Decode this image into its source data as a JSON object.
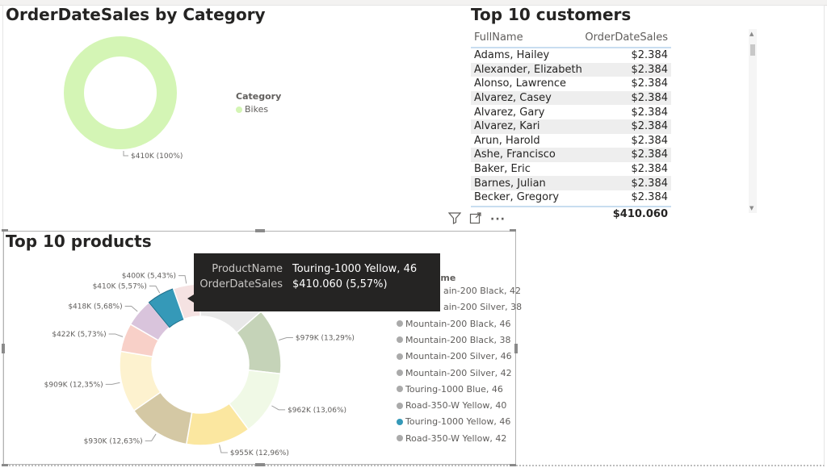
{
  "category_visual": {
    "title": "OrderDateSales by Category",
    "legend_title": "Category",
    "legend_items": [
      {
        "label": "Bikes",
        "color": "#d4f5b5"
      }
    ],
    "chart_data": {
      "type": "pie",
      "categories": [
        "Bikes"
      ],
      "values": [
        410
      ],
      "data_labels": [
        "$410K (100%)"
      ],
      "legend_placement": "right"
    }
  },
  "customers_visual": {
    "title": "Top 10 customers",
    "columns": [
      "FullName",
      "OrderDateSales"
    ],
    "rows": [
      {
        "name": "Adams, Hailey",
        "sales": "$2.384"
      },
      {
        "name": "Alexander, Elizabeth",
        "sales": "$2.384"
      },
      {
        "name": "Alonso, Lawrence",
        "sales": "$2.384"
      },
      {
        "name": "Alvarez, Casey",
        "sales": "$2.384"
      },
      {
        "name": "Alvarez, Gary",
        "sales": "$2.384"
      },
      {
        "name": "Alvarez, Kari",
        "sales": "$2.384"
      },
      {
        "name": "Arun, Harold",
        "sales": "$2.384"
      },
      {
        "name": "Ashe, Francisco",
        "sales": "$2.384"
      },
      {
        "name": "Baker, Eric",
        "sales": "$2.384"
      },
      {
        "name": "Barnes, Julian",
        "sales": "$2.384"
      },
      {
        "name": "Becker, Gregory",
        "sales": "$2.384"
      }
    ],
    "total": "$410.060"
  },
  "toolbar": {
    "icons": [
      "filter-icon",
      "focus-mode-icon",
      "more-options-icon"
    ]
  },
  "products_visual": {
    "title": "Top 10 products",
    "legend_title": "ame",
    "legend_items": [
      {
        "label": "ain-200 Black, 42",
        "color": "#aaaaaa"
      },
      {
        "label": "ain-200 Silver, 38",
        "color": "#aaaaaa"
      },
      {
        "label": "Mountain-200 Black, 46",
        "color": "#aaaaaa"
      },
      {
        "label": "Mountain-200 Black, 38",
        "color": "#aaaaaa"
      },
      {
        "label": "Mountain-200 Silver, 46",
        "color": "#aaaaaa"
      },
      {
        "label": "Mountain-200 Silver, 42",
        "color": "#aaaaaa"
      },
      {
        "label": "Touring-1000 Blue, 46",
        "color": "#aaaaaa"
      },
      {
        "label": "Road-350-W Yellow, 40",
        "color": "#aaaaaa"
      },
      {
        "label": "Touring-1000 Yellow, 46",
        "color": "#3599b8"
      },
      {
        "label": "Road-350-W Yellow, 42",
        "color": "#aaaaaa"
      }
    ],
    "chart_data": {
      "type": "pie",
      "slices": [
        {
          "value": 1000,
          "percent": 13.56,
          "label": "",
          "color": "#e8e8e8"
        },
        {
          "value": 979,
          "percent": 13.29,
          "label": "$979K (13,29%)",
          "color": "#c5d3b8"
        },
        {
          "value": 962,
          "percent": 13.06,
          "label": "$962K (13,06%)",
          "color": "#f0f9e6"
        },
        {
          "value": 955,
          "percent": 12.96,
          "label": "$955K (12,96%)",
          "color": "#fbe7a0"
        },
        {
          "value": 930,
          "percent": 12.63,
          "label": "$930K (12,63%)",
          "color": "#d4c8a4"
        },
        {
          "value": 909,
          "percent": 12.35,
          "label": "$909K (12,35%)",
          "color": "#fdf2cf"
        },
        {
          "value": 422,
          "percent": 5.73,
          "label": "$422K (5,73%)",
          "color": "#f8d0c8"
        },
        {
          "value": 418,
          "percent": 5.68,
          "label": "$418K (5,68%)",
          "color": "#d9c4dc"
        },
        {
          "value": 410,
          "percent": 5.57,
          "label": "$410K (5,57%)",
          "color": "#3599b8"
        },
        {
          "value": 400,
          "percent": 5.43,
          "label": "$400K (5,43%)",
          "color": "#f5e2e2"
        }
      ],
      "legend_placement": "right"
    },
    "tooltip": {
      "key1": "ProductName",
      "val1": "Touring-1000 Yellow, 46",
      "key2": "OrderDateSales",
      "val2": "$410.060 (5,57%)"
    }
  }
}
